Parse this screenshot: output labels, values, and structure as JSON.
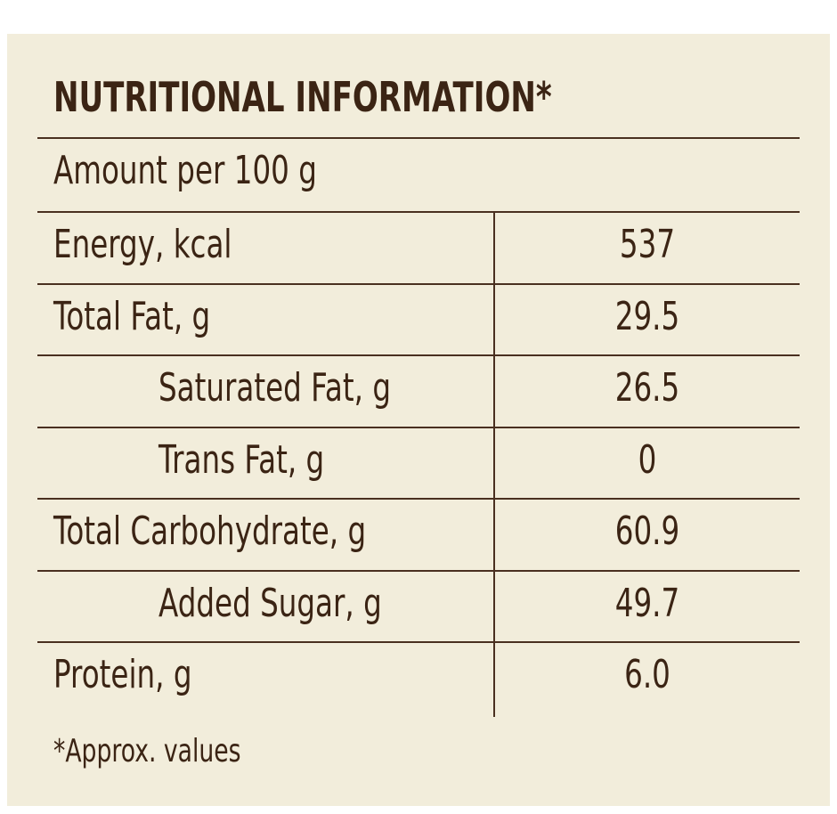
{
  "title": "NUTRITIONAL INFORMATION*",
  "subheader": "Amount per 100 g",
  "rows": [
    {
      "label": "Energy, kcal",
      "value": "537",
      "indent": false
    },
    {
      "label": "Total Fat, g",
      "value": "29.5",
      "indent": false
    },
    {
      "label": "Saturated Fat, g",
      "value": "26.5",
      "indent": true
    },
    {
      "label": "Trans Fat, g",
      "value": "0",
      "indent": true
    },
    {
      "label": "Total Carbohydrate, g",
      "value": "60.9",
      "indent": false
    },
    {
      "label": "Added Sugar, g",
      "value": "49.7",
      "indent": true
    },
    {
      "label": "Protein, g",
      "value": "6.0",
      "indent": false
    }
  ],
  "footnote": "*Approx. values"
}
